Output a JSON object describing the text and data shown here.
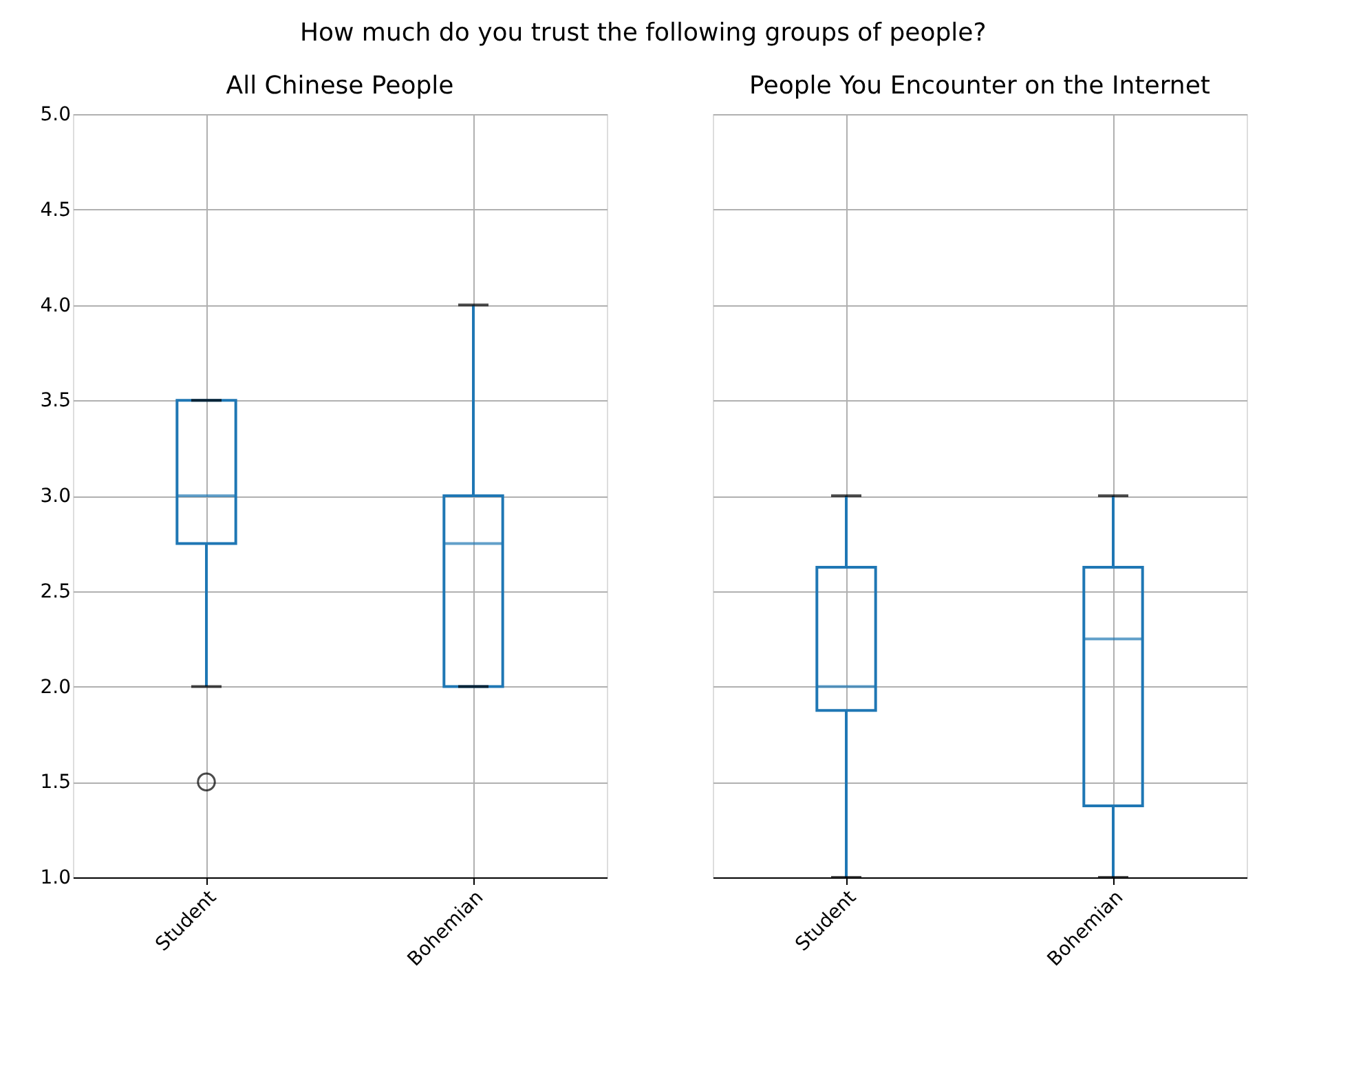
{
  "chart_data": [
    {
      "type": "box",
      "title": "All Chinese People",
      "annotations": [
        "How much do you trust the following groups of people?"
      ],
      "categories": [
        "Student",
        "Bohemian"
      ],
      "ylim": [
        1.0,
        5.0
      ],
      "yticks": [
        {
          "value": 1.0,
          "label": "1.0"
        },
        {
          "value": 1.5,
          "label": "1.5"
        },
        {
          "value": 2.0,
          "label": "2.0"
        },
        {
          "value": 2.5,
          "label": "2.5"
        },
        {
          "value": 3.0,
          "label": "3.0"
        },
        {
          "value": 3.5,
          "label": "3.5"
        },
        {
          "value": 4.0,
          "label": "4.0"
        },
        {
          "value": 4.5,
          "label": "4.5"
        },
        {
          "value": 5.0,
          "label": "5.0"
        }
      ],
      "grid": true,
      "series": [
        {
          "color": "#1f77b4",
          "boxes": [
            {
              "low": 2.0,
              "q1": 2.75,
              "median": 3.0,
              "q3": 3.5,
              "high": 3.5,
              "outliers": [
                1.5
              ]
            },
            {
              "low": 2.0,
              "q1": 2.0,
              "median": 2.75,
              "q3": 3.0,
              "high": 4.0
            }
          ]
        }
      ]
    },
    {
      "type": "box",
      "title": "People You Encounter on the Internet",
      "categories": [
        "Student",
        "Bohemian"
      ],
      "ylim": [
        1.0,
        5.0
      ],
      "yticks": [
        {
          "value": 1.0,
          "label": null
        },
        {
          "value": 1.5,
          "label": null
        },
        {
          "value": 2.0,
          "label": null
        },
        {
          "value": 2.5,
          "label": null
        },
        {
          "value": 3.0,
          "label": null
        },
        {
          "value": 3.5,
          "label": null
        },
        {
          "value": 4.0,
          "label": null
        },
        {
          "value": 4.5,
          "label": null
        },
        {
          "value": 5.0,
          "label": null
        }
      ],
      "grid": true,
      "tick_labels": "x",
      "series": [
        {
          "color": "#1f77b4",
          "boxes": [
            {
              "low": 1.0,
              "q1": 1.875,
              "median": 2.0,
              "q3": 2.625,
              "high": 3.0
            },
            {
              "low": 1.0,
              "q1": 1.375,
              "median": 2.25,
              "q3": 2.625,
              "high": 3.0
            }
          ]
        }
      ]
    }
  ]
}
